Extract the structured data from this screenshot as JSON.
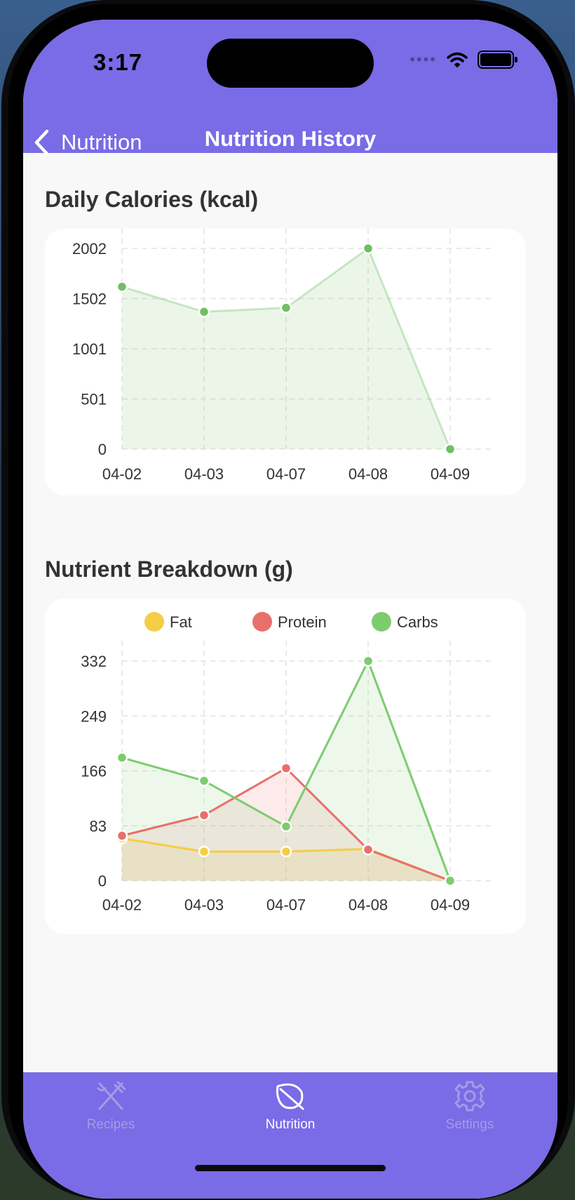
{
  "status_bar": {
    "time": "3:17"
  },
  "nav": {
    "back_label": "Nutrition",
    "title": "Nutrition History"
  },
  "sections": {
    "calories_title": "Daily Calories (kcal)",
    "nutrients_title": "Nutrient Breakdown (g)"
  },
  "tab_bar": {
    "items": [
      {
        "label": "Recipes",
        "icon": "fork-knife-icon",
        "active": false
      },
      {
        "label": "Nutrition",
        "icon": "leaf-icon",
        "active": true
      },
      {
        "label": "Settings",
        "icon": "gear-icon",
        "active": false
      }
    ]
  },
  "colors": {
    "header": "#7a6be6",
    "calories": "#6fbf63",
    "fat": "#f5cd45",
    "protein": "#e8706a",
    "carbs": "#7ccc6f",
    "tab_active": "#ffffff",
    "tab_inactive": "#a59be6"
  },
  "chart_data": [
    {
      "type": "area",
      "categories": [
        "04-02",
        "04-03",
        "04-07",
        "04-08",
        "04-09"
      ],
      "y_ticks": [
        "2002",
        "1502",
        "1001",
        "501",
        "0"
      ],
      "ylim": [
        0,
        2002
      ],
      "grid": true,
      "series": [
        {
          "values": [
            1620,
            1370,
            1410,
            2002,
            0
          ],
          "color": "#6fbf63"
        }
      ]
    },
    {
      "type": "area",
      "categories": [
        "04-02",
        "04-03",
        "04-07",
        "04-08",
        "04-09"
      ],
      "y_ticks": [
        "332",
        "249",
        "166",
        "83",
        "0"
      ],
      "ylim": [
        0,
        332
      ],
      "grid": true,
      "legend": "top",
      "series": [
        {
          "name": "Fat",
          "values": [
            64,
            44,
            44,
            48,
            0
          ],
          "color": "#f5cd45"
        },
        {
          "name": "Protein",
          "values": [
            68,
            99,
            170,
            47,
            0
          ],
          "color": "#e8706a"
        },
        {
          "name": "Carbs",
          "values": [
            186,
            151,
            82,
            332,
            0
          ],
          "color": "#7ccc6f"
        }
      ]
    }
  ]
}
